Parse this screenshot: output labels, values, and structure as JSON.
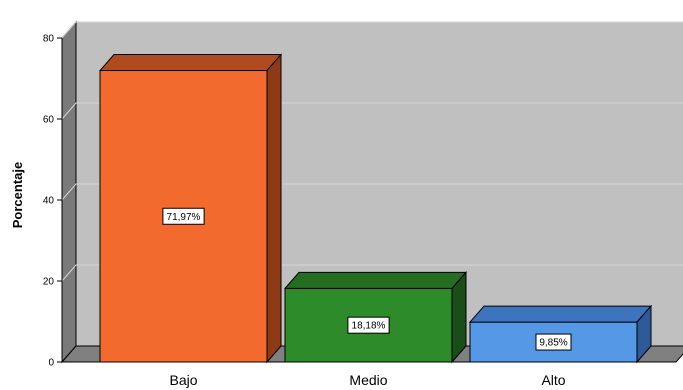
{
  "chart_data": {
    "type": "bar",
    "categories": [
      "Bajo",
      "Medio",
      "Alto"
    ],
    "values": [
      71.97,
      18.18,
      9.85
    ],
    "data_labels": [
      "71,97%",
      "18,18%",
      "9,85%"
    ],
    "ylabel": "Porcentaje",
    "xlabel": "",
    "ylim": [
      0,
      80
    ],
    "yticks": [
      0,
      20,
      40,
      60,
      80
    ],
    "grid": true,
    "three_d": true,
    "colors": {
      "bars": [
        "#f26a2e",
        "#2e8b2a",
        "#5599e6"
      ],
      "bar_sides": [
        "#8f3a16",
        "#1a4d18",
        "#2f5a99"
      ],
      "bar_tops": [
        "#b04a1f",
        "#246d21",
        "#3d74bd"
      ],
      "wall": "#c0c0c0",
      "floor": "#808080",
      "gridline": "#d6d6d6"
    }
  }
}
